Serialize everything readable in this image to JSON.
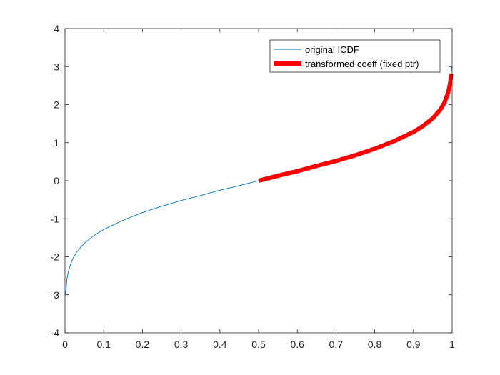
{
  "chart_data": {
    "type": "line",
    "title": "",
    "xlabel": "",
    "ylabel": "",
    "xlim": [
      0,
      1
    ],
    "ylim": [
      -4,
      4
    ],
    "xticks": [
      0,
      0.1,
      0.2,
      0.3,
      0.4,
      0.5,
      0.6,
      0.7,
      0.8,
      0.9,
      1
    ],
    "xtick_labels": [
      "0",
      "0.1",
      "0.2",
      "0.3",
      "0.4",
      "0.5",
      "0.6",
      "0.7",
      "0.8",
      "0.9",
      "1"
    ],
    "yticks": [
      -4,
      -3,
      -2,
      -1,
      0,
      1,
      2,
      3,
      4
    ],
    "ytick_labels": [
      "-4",
      "-3",
      "-2",
      "-1",
      "0",
      "1",
      "2",
      "3",
      "4"
    ],
    "grid": false,
    "legend": {
      "placement": "top-right"
    },
    "series": [
      {
        "name": "original ICDF",
        "color": "#0072BD",
        "style": "thin",
        "x": [
          0.0013,
          0.005,
          0.01,
          0.02,
          0.03,
          0.05,
          0.075,
          0.1,
          0.15,
          0.2,
          0.25,
          0.3,
          0.35,
          0.4,
          0.45,
          0.5,
          0.55,
          0.6,
          0.65,
          0.7,
          0.75,
          0.8,
          0.85,
          0.9,
          0.925,
          0.95,
          0.97,
          0.98,
          0.99,
          0.995,
          0.9987
        ],
        "y": [
          -3.0,
          -2.58,
          -2.33,
          -2.05,
          -1.88,
          -1.64,
          -1.44,
          -1.28,
          -1.04,
          -0.84,
          -0.67,
          -0.52,
          -0.39,
          -0.25,
          -0.13,
          0.0,
          0.13,
          0.25,
          0.39,
          0.52,
          0.67,
          0.84,
          1.04,
          1.28,
          1.44,
          1.64,
          1.88,
          2.05,
          2.33,
          2.58,
          3.0
        ]
      },
      {
        "name": "transformed coeff (fixed ptr)",
        "color": "#FF0000",
        "style": "thick",
        "x": [
          0.5,
          0.55,
          0.6,
          0.65,
          0.7,
          0.75,
          0.8,
          0.85,
          0.9,
          0.925,
          0.95,
          0.97,
          0.98,
          0.99,
          0.995,
          0.9975
        ],
        "y": [
          0.0,
          0.13,
          0.25,
          0.39,
          0.52,
          0.67,
          0.84,
          1.04,
          1.28,
          1.44,
          1.64,
          1.88,
          2.05,
          2.33,
          2.58,
          2.81
        ]
      }
    ]
  }
}
